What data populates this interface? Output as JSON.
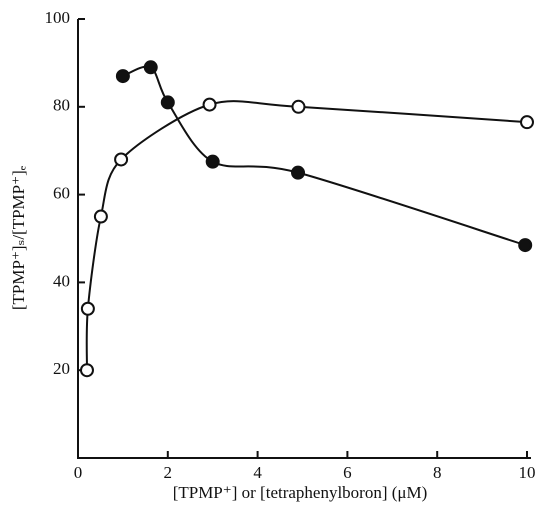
{
  "chart_data": {
    "type": "line",
    "x_label": "[TPMP⁺] or [tetraphenylboron] (μM)",
    "y_label": "[TPMP⁺]ₛ/[TPMP⁺]ₑ",
    "xlim": [
      0,
      10
    ],
    "ylim": [
      0,
      100
    ],
    "xticks": [
      0,
      2,
      4,
      6,
      8,
      10
    ],
    "yticks": [
      20,
      40,
      60,
      80,
      100
    ],
    "series": [
      {
        "marker": "open",
        "color": "#111",
        "x": [
          0.2,
          0.22,
          0.51,
          0.96,
          2.93,
          4.91,
          10
        ],
        "values": [
          20,
          34,
          55,
          68,
          80.5,
          80,
          76.5
        ]
      },
      {
        "marker": "filled",
        "color": "#111",
        "x": [
          1.0,
          1.62,
          2.0,
          3.0,
          4.9,
          9.96
        ],
        "values": [
          87,
          89,
          81,
          67.5,
          65,
          48.5
        ]
      }
    ]
  }
}
